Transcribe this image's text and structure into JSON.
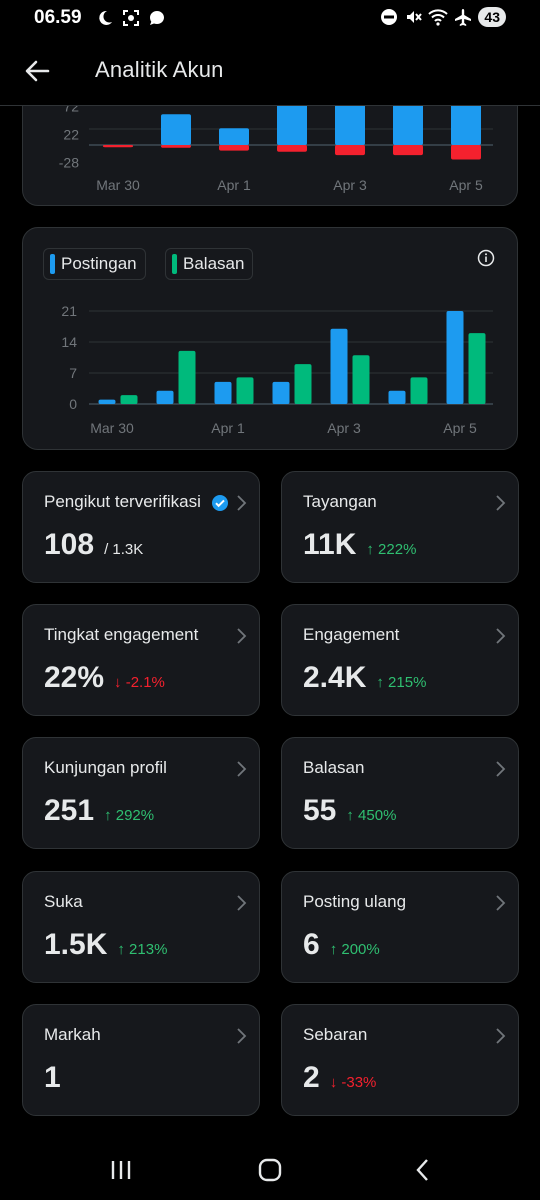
{
  "status": {
    "time": "06.59",
    "battery": "43"
  },
  "header": {
    "title": "Analitik Akun"
  },
  "chart_top": {
    "y_ticks": [
      "72",
      "22",
      "-28"
    ],
    "x_labels": [
      "Mar 30",
      "Apr 1",
      "Apr 3",
      "Apr 5"
    ]
  },
  "chart_data": [
    {
      "type": "bar",
      "categories": [
        "Mar 30",
        "Mar 31",
        "Apr 1",
        "Apr 2",
        "Apr 3",
        "Apr 4",
        "Apr 5"
      ],
      "series": [
        {
          "values": [
            0,
            55,
            30,
            75,
            75,
            75,
            75
          ]
        },
        {
          "values": [
            -4,
            -5,
            -10,
            -12,
            -18,
            -18,
            -26
          ]
        }
      ],
      "y_ticks": [
        -28,
        22,
        72
      ],
      "colors": [
        "#1d9bf0",
        "#f4212e"
      ]
    },
    {
      "type": "bar",
      "categories": [
        "Mar 30",
        "Mar 31",
        "Apr 1",
        "Apr 2",
        "Apr 3",
        "Apr 4",
        "Apr 5"
      ],
      "series": [
        {
          "name": "Postingan",
          "values": [
            1,
            3,
            5,
            5,
            17,
            3,
            21
          ]
        },
        {
          "name": "Balasan",
          "values": [
            2,
            12,
            6,
            9,
            11,
            6,
            16
          ]
        }
      ],
      "y_ticks": [
        0,
        7,
        14,
        21
      ],
      "ylim": [
        0,
        21
      ],
      "x_labels": [
        "Mar 30",
        "Apr 1",
        "Apr 3",
        "Apr 5"
      ],
      "colors": [
        "#1d9bf0",
        "#00ba7c"
      ]
    }
  ],
  "legend": {
    "postingan": "Postingan",
    "balasan": "Balasan"
  },
  "stats": [
    {
      "label": "Pengikut terverifikasi",
      "value": "108",
      "sub": "/ 1.3K",
      "change": ""
    },
    {
      "label": "Tayangan",
      "value": "11K",
      "sub": "",
      "change": "↑ 222%"
    },
    {
      "label": "Tingkat engagement",
      "value": "22%",
      "sub": "",
      "change": "↓ -2.1%"
    },
    {
      "label": "Engagement",
      "value": "2.4K",
      "sub": "",
      "change": "↑ 215%"
    },
    {
      "label": "Kunjungan profil",
      "value": "251",
      "sub": "",
      "change": "↑ 292%"
    },
    {
      "label": "Balasan",
      "value": "55",
      "sub": "",
      "change": "↑ 450%"
    },
    {
      "label": "Suka",
      "value": "1.5K",
      "sub": "",
      "change": "↑ 213%"
    },
    {
      "label": "Posting ulang",
      "value": "6",
      "sub": "",
      "change": "↑ 200%"
    },
    {
      "label": "Markah",
      "value": "1",
      "sub": "",
      "change": ""
    },
    {
      "label": "Sebaran",
      "value": "2",
      "sub": "",
      "change": "↓ -33%"
    }
  ]
}
